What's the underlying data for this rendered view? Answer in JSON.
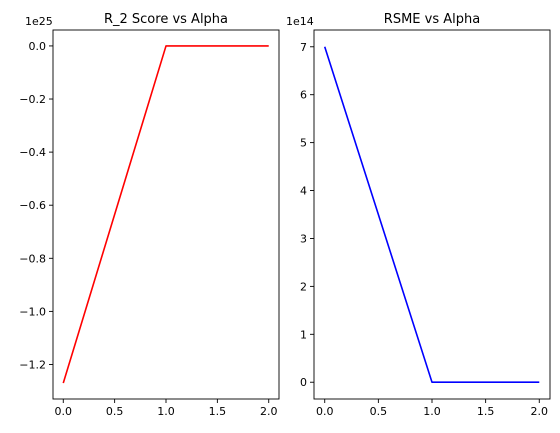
{
  "chart_data": [
    {
      "type": "line",
      "title": "R_2 Score vs Alpha",
      "offset_label": "1e25",
      "x": [
        0.0,
        1.0,
        2.0
      ],
      "series": [
        {
          "color": "#ff0000",
          "values": [
            -1.27,
            0.0,
            0.0
          ]
        }
      ],
      "xlim": [
        -0.1,
        2.1
      ],
      "ylim": [
        -1.33,
        0.06
      ],
      "xticks": [
        0.0,
        0.5,
        1.0,
        1.5,
        2.0
      ],
      "xtick_labels": [
        "0.0",
        "0.5",
        "1.0",
        "1.5",
        "2.0"
      ],
      "yticks": [
        0.0,
        -0.2,
        -0.4,
        -0.6,
        -0.8,
        -1.0,
        -1.2
      ],
      "ytick_labels": [
        "0.0",
        "−0.2",
        "−0.4",
        "−0.6",
        "−0.8",
        "−1.0",
        "−1.2"
      ],
      "grid": false
    },
    {
      "type": "line",
      "title": "RSME vs Alpha",
      "offset_label": "1e14",
      "x": [
        0.0,
        1.0,
        2.0
      ],
      "series": [
        {
          "color": "#0000ff",
          "values": [
            7.0,
            0.0,
            0.0
          ]
        }
      ],
      "xlim": [
        -0.1,
        2.1
      ],
      "ylim": [
        -0.35,
        7.35
      ],
      "xticks": [
        0.0,
        0.5,
        1.0,
        1.5,
        2.0
      ],
      "xtick_labels": [
        "0.0",
        "0.5",
        "1.0",
        "1.5",
        "2.0"
      ],
      "yticks": [
        0,
        1,
        2,
        3,
        4,
        5,
        6,
        7
      ],
      "ytick_labels": [
        "0",
        "1",
        "2",
        "3",
        "4",
        "5",
        "6",
        "7"
      ],
      "grid": false
    }
  ]
}
